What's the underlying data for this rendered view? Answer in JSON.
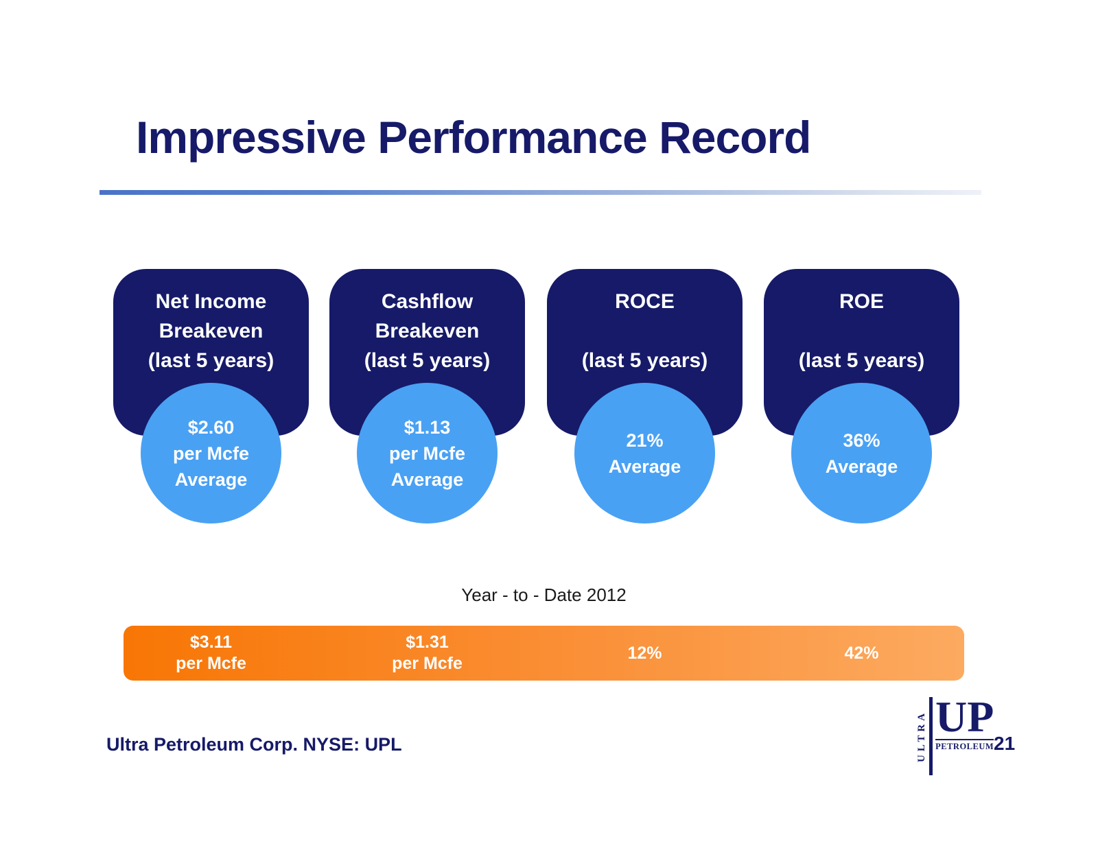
{
  "colors": {
    "navy": "#161a68",
    "circle_blue": "#49a1f3",
    "bar_orange_left": "#f87604",
    "bar_orange_right": "#fcaa60"
  },
  "title": "Impressive Performance Record",
  "columns": [
    {
      "header_lines": [
        "Net Income",
        "Breakeven",
        "(last 5 years)"
      ],
      "circle_lines": [
        "$2.60",
        "per Mcfe",
        "Average"
      ],
      "ytd_lines": [
        "$3.11",
        "per Mcfe"
      ]
    },
    {
      "header_lines": [
        "Cashflow",
        "Breakeven",
        "(last 5 years)"
      ],
      "circle_lines": [
        "$1.13",
        "per Mcfe",
        "Average"
      ],
      "ytd_lines": [
        "$1.31",
        "per Mcfe"
      ]
    },
    {
      "header_lines": [
        "ROCE",
        "",
        "(last 5 years)"
      ],
      "circle_lines": [
        "21%",
        "Average"
      ],
      "ytd_lines": [
        "12%"
      ]
    },
    {
      "header_lines": [
        "ROE",
        "",
        "(last 5 years)"
      ],
      "circle_lines": [
        "36%",
        "Average"
      ],
      "ytd_lines": [
        "42%"
      ]
    }
  ],
  "ytd_section": {
    "label": "Year - to - Date 2012"
  },
  "footer": {
    "company": "Ultra Petroleum Corp. NYSE: UPL",
    "page_number": "21"
  },
  "logo": {
    "ultra": "ULTRA",
    "up": "UP",
    "petroleum": "PETROLEUM"
  }
}
